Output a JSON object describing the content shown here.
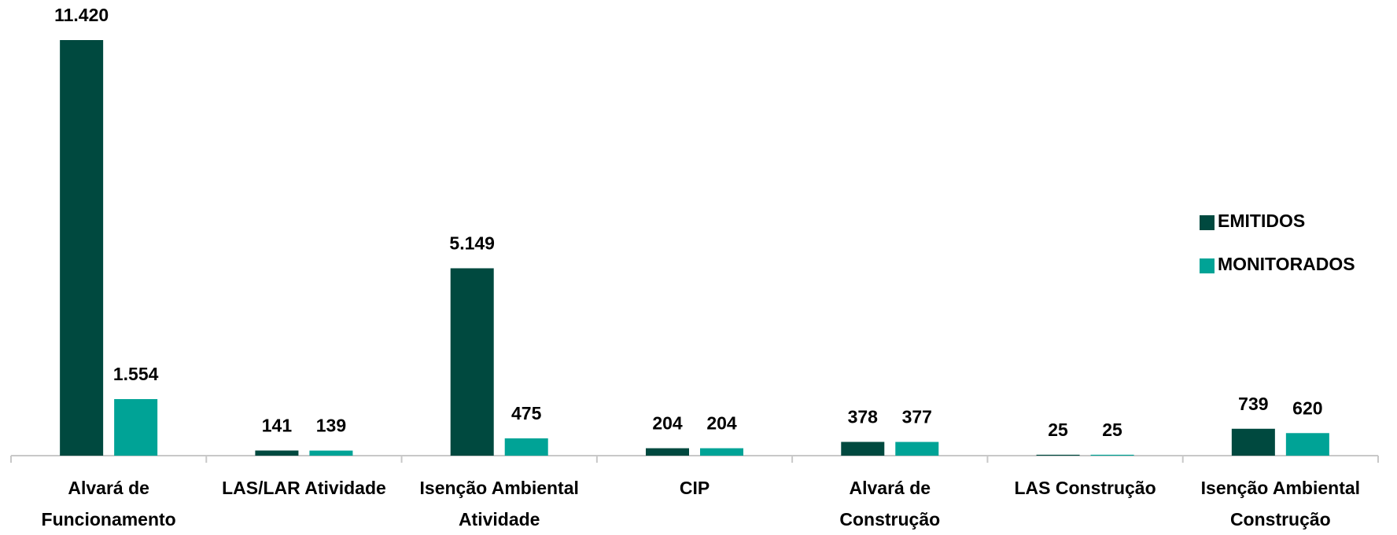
{
  "chart_data": {
    "type": "bar",
    "categories": [
      "Alvará de Funcionamento",
      "LAS/LAR Atividade",
      "Isenção Ambiental Atividade",
      "CIP",
      "Alvará de Construção",
      "LAS Construção",
      "Isenção Ambiental Construção"
    ],
    "series": [
      {
        "name": "EMITIDOS",
        "color": "#00493f",
        "values": [
          11420,
          141,
          5149,
          204,
          378,
          25,
          739
        ],
        "value_labels": [
          "11.420",
          "141",
          "5.149",
          "204",
          "378",
          "25",
          "739"
        ]
      },
      {
        "name": "MONITORADOS",
        "color": "#00a396",
        "values": [
          1554,
          139,
          475,
          204,
          377,
          25,
          620
        ],
        "value_labels": [
          "1.554",
          "139",
          "475",
          "204",
          "377",
          "25",
          "620"
        ]
      }
    ],
    "legend": "right"
  }
}
